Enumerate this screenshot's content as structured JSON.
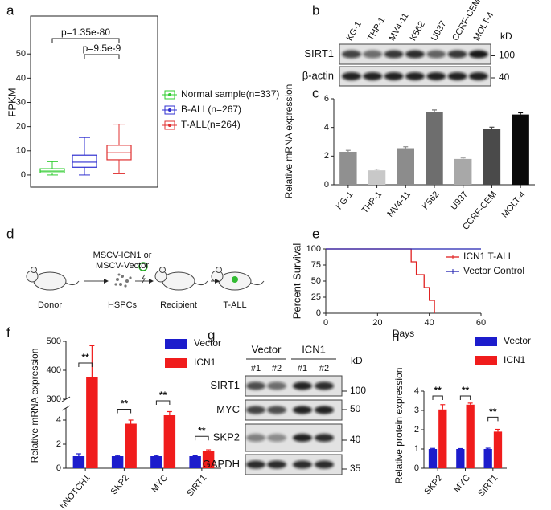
{
  "panel_labels": [
    "a",
    "b",
    "c",
    "d",
    "e",
    "f",
    "g",
    "h"
  ],
  "chart_data": [
    {
      "type": "box",
      "ylabel": "FPKM",
      "ylim": [
        -5,
        65
      ],
      "yticks": [
        0,
        10,
        20,
        30,
        40,
        50
      ],
      "series": [
        {
          "name": "Normal sample(n=337)",
          "color": "#2ecc2e",
          "whislo": 0,
          "q1": 0.9,
          "median": 1.6,
          "q3": 2.6,
          "whishi": 5.5
        },
        {
          "name": "B-ALL(n=267)",
          "color": "#2f2fd0",
          "whislo": 0,
          "q1": 3.2,
          "median": 5.3,
          "q3": 8.2,
          "whishi": 15.5
        },
        {
          "name": "T-ALL(n=264)",
          "color": "#e03030",
          "whislo": 0.5,
          "q1": 6.3,
          "median": 9.2,
          "q3": 12.3,
          "whishi": 21
        }
      ],
      "annotations": [
        "p=1.35e-80",
        "p=9.5e-9"
      ]
    },
    {
      "type": "bar",
      "ylabel": "Relative mRNA expression",
      "categories": [
        "KG-1",
        "THP-1",
        "MV4-11",
        "K562",
        "U937",
        "CCRF-CEM",
        "MOLT-4"
      ],
      "values": [
        2.3,
        1.0,
        2.55,
        5.1,
        1.8,
        3.9,
        4.9
      ],
      "errors": [
        0.1,
        0.08,
        0.1,
        0.12,
        0.07,
        0.12,
        0.12
      ],
      "colors": [
        "#909090",
        "#c8c8c8",
        "#8c8c8c",
        "#6e6e6e",
        "#a8a8a8",
        "#4a4a4a",
        "#0a0a0a"
      ],
      "ylim": [
        0,
        6
      ],
      "yticks": [
        0,
        2,
        4,
        6
      ]
    },
    {
      "type": "line",
      "step": true,
      "xlabel": "Days",
      "ylabel": "Percent Survival",
      "xlim": [
        0,
        60
      ],
      "xticks": [
        0,
        20,
        40,
        60
      ],
      "ylim": [
        0,
        100
      ],
      "yticks": [
        0,
        25,
        50,
        75,
        100
      ],
      "series": [
        {
          "name": "ICN1 T-ALL",
          "color": "#e02020",
          "x": [
            0,
            33,
            35,
            38,
            40,
            42
          ],
          "values": [
            100,
            80,
            60,
            40,
            20,
            0
          ]
        },
        {
          "name": "Vector Control",
          "color": "#2020b0",
          "x": [
            0,
            60
          ],
          "values": [
            100,
            100
          ]
        }
      ]
    },
    {
      "type": "bar",
      "ylabel": "Relative mRNA expression",
      "categories": [
        "hNOTCH1",
        "SKP2",
        "MYC",
        "SIRT1"
      ],
      "series": [
        {
          "name": "Vector",
          "color": "#1c1ccc",
          "values": [
            1,
            1,
            1,
            1
          ],
          "errors": [
            0.2,
            0.05,
            0.05,
            0.03
          ]
        },
        {
          "name": "ICN1",
          "color": "#f01c1c",
          "values": [
            375,
            3.7,
            4.4,
            1.45
          ],
          "errors": [
            110,
            0.3,
            0.3,
            0.08
          ]
        }
      ],
      "segments": [
        {
          "ylim": [
            0,
            5
          ],
          "yticks": [
            0,
            2,
            4
          ]
        },
        {
          "ylim": [
            300,
            500
          ],
          "yticks": [
            300,
            400,
            500
          ]
        }
      ],
      "annotations": [
        "**",
        "**",
        "**",
        "**"
      ]
    },
    {
      "type": "bar",
      "ylabel": "Relative protein expression",
      "categories": [
        "SKP2",
        "MYC",
        "SIRT1"
      ],
      "series": [
        {
          "name": "Vector",
          "color": "#1c1ccc",
          "values": [
            1,
            1,
            1
          ],
          "errors": [
            0.03,
            0.02,
            0.04
          ]
        },
        {
          "name": "ICN1",
          "color": "#f01c1c",
          "values": [
            3.05,
            3.3,
            1.9
          ],
          "errors": [
            0.25,
            0.08,
            0.12
          ]
        }
      ],
      "ylim": [
        0,
        4
      ],
      "yticks": [
        0,
        1,
        2,
        3,
        4
      ],
      "annotations": [
        "**",
        "**",
        "**"
      ]
    }
  ],
  "blot_b": {
    "lanes": [
      "KG-1",
      "THP-1",
      "MV4-11",
      "K562",
      "U937",
      "CCRF-CEM",
      "MOLT-4"
    ],
    "rows": [
      "SIRT1",
      "β-actin"
    ],
    "unit": "kD",
    "markers": [
      "100",
      "40"
    ]
  },
  "diagram_d": {
    "vector_label": [
      "MSCV-ICN1 or",
      "MSCV-Vector"
    ],
    "steps": [
      "Donor",
      "HSPCs",
      "Recipient",
      "T-ALL"
    ]
  },
  "blot_g": {
    "groups": [
      "Vector",
      "ICN1"
    ],
    "lanes": [
      "#1",
      "#2",
      "#1",
      "#2"
    ],
    "rows": [
      "SIRT1",
      "MYC",
      "SKP2",
      "GAPDH"
    ],
    "unit": "kD",
    "markers": [
      "100",
      "50",
      "40",
      "35"
    ]
  }
}
